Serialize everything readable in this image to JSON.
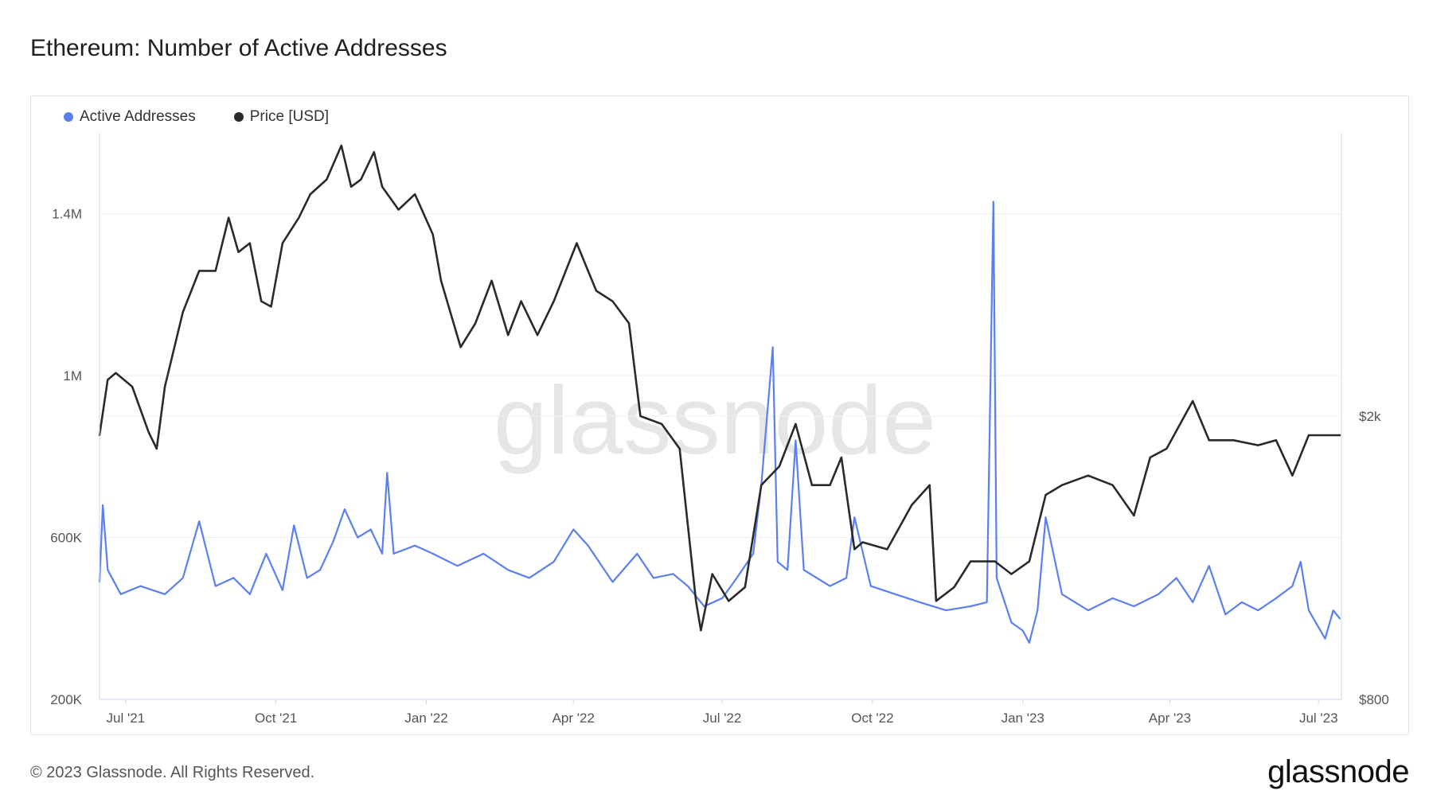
{
  "title": "Ethereum: Number of Active Addresses",
  "watermark": "glassnode",
  "footer": {
    "copyright": "© 2023 Glassnode. All Rights Reserved.",
    "brand": "glassnode"
  },
  "colors": {
    "active_addresses": "#5b7ff0",
    "price": "#2a2a2a",
    "grid": "#eeeeee"
  },
  "chart_data": {
    "type": "line",
    "title": "Ethereum: Number of Active Addresses",
    "legend_position": "top-left",
    "grid": true,
    "x_range": [
      "2021-06-15",
      "2023-07-15"
    ],
    "x_ticks": [
      {
        "date": "2021-07-01",
        "label": "Jul '21"
      },
      {
        "date": "2021-10-01",
        "label": "Oct '21"
      },
      {
        "date": "2022-01-01",
        "label": "Jan '22"
      },
      {
        "date": "2022-04-01",
        "label": "Apr '22"
      },
      {
        "date": "2022-07-01",
        "label": "Jul '22"
      },
      {
        "date": "2022-10-01",
        "label": "Oct '22"
      },
      {
        "date": "2023-01-01",
        "label": "Jan '23"
      },
      {
        "date": "2023-04-01",
        "label": "Apr '23"
      },
      {
        "date": "2023-07-01",
        "label": "Jul '23"
      }
    ],
    "y_left": {
      "label": "",
      "range": [
        200000,
        1600000
      ],
      "ticks": [
        {
          "value": 200000,
          "label": "200K"
        },
        {
          "value": 600000,
          "label": "600K"
        },
        {
          "value": 1000000,
          "label": "1M"
        },
        {
          "value": 1400000,
          "label": "1.4M"
        }
      ]
    },
    "y_right": {
      "label": "",
      "scale": "log",
      "range": [
        800,
        5000
      ],
      "ticks": [
        {
          "value": 800,
          "label": "$800"
        },
        {
          "value": 2000,
          "label": "$2k"
        }
      ]
    },
    "series": [
      {
        "name": "Active Addresses",
        "axis": "left",
        "points": [
          [
            "2021-06-15",
            490000
          ],
          [
            "2021-06-17",
            680000
          ],
          [
            "2021-06-20",
            520000
          ],
          [
            "2021-06-28",
            460000
          ],
          [
            "2021-07-10",
            480000
          ],
          [
            "2021-07-25",
            460000
          ],
          [
            "2021-08-05",
            500000
          ],
          [
            "2021-08-15",
            640000
          ],
          [
            "2021-08-25",
            480000
          ],
          [
            "2021-09-05",
            500000
          ],
          [
            "2021-09-15",
            460000
          ],
          [
            "2021-09-25",
            560000
          ],
          [
            "2021-10-05",
            470000
          ],
          [
            "2021-10-12",
            630000
          ],
          [
            "2021-10-20",
            500000
          ],
          [
            "2021-10-28",
            520000
          ],
          [
            "2021-11-05",
            590000
          ],
          [
            "2021-11-12",
            670000
          ],
          [
            "2021-11-20",
            600000
          ],
          [
            "2021-11-28",
            620000
          ],
          [
            "2021-12-05",
            560000
          ],
          [
            "2021-12-08",
            760000
          ],
          [
            "2021-12-12",
            560000
          ],
          [
            "2021-12-25",
            580000
          ],
          [
            "2022-01-05",
            560000
          ],
          [
            "2022-01-20",
            530000
          ],
          [
            "2022-02-05",
            560000
          ],
          [
            "2022-02-20",
            520000
          ],
          [
            "2022-03-05",
            500000
          ],
          [
            "2022-03-20",
            540000
          ],
          [
            "2022-04-01",
            620000
          ],
          [
            "2022-04-10",
            580000
          ],
          [
            "2022-04-25",
            490000
          ],
          [
            "2022-05-10",
            560000
          ],
          [
            "2022-05-20",
            500000
          ],
          [
            "2022-06-01",
            510000
          ],
          [
            "2022-06-10",
            480000
          ],
          [
            "2022-06-20",
            430000
          ],
          [
            "2022-07-01",
            450000
          ],
          [
            "2022-07-10",
            500000
          ],
          [
            "2022-07-20",
            560000
          ],
          [
            "2022-07-25",
            730000
          ],
          [
            "2022-08-01",
            1070000
          ],
          [
            "2022-08-04",
            540000
          ],
          [
            "2022-08-10",
            520000
          ],
          [
            "2022-08-15",
            840000
          ],
          [
            "2022-08-20",
            520000
          ],
          [
            "2022-09-05",
            480000
          ],
          [
            "2022-09-15",
            500000
          ],
          [
            "2022-09-20",
            650000
          ],
          [
            "2022-09-30",
            480000
          ],
          [
            "2022-10-15",
            460000
          ],
          [
            "2022-10-30",
            440000
          ],
          [
            "2022-11-15",
            420000
          ],
          [
            "2022-11-30",
            430000
          ],
          [
            "2022-12-10",
            440000
          ],
          [
            "2022-12-14",
            1430000
          ],
          [
            "2022-12-16",
            500000
          ],
          [
            "2022-12-25",
            390000
          ],
          [
            "2023-01-01",
            370000
          ],
          [
            "2023-01-05",
            340000
          ],
          [
            "2023-01-10",
            420000
          ],
          [
            "2023-01-15",
            650000
          ],
          [
            "2023-01-25",
            460000
          ],
          [
            "2023-02-10",
            420000
          ],
          [
            "2023-02-25",
            450000
          ],
          [
            "2023-03-10",
            430000
          ],
          [
            "2023-03-25",
            460000
          ],
          [
            "2023-04-05",
            500000
          ],
          [
            "2023-04-15",
            440000
          ],
          [
            "2023-04-25",
            530000
          ],
          [
            "2023-05-05",
            410000
          ],
          [
            "2023-05-15",
            440000
          ],
          [
            "2023-05-25",
            420000
          ],
          [
            "2023-06-05",
            450000
          ],
          [
            "2023-06-15",
            480000
          ],
          [
            "2023-06-20",
            540000
          ],
          [
            "2023-06-25",
            420000
          ],
          [
            "2023-07-05",
            350000
          ],
          [
            "2023-07-10",
            420000
          ],
          [
            "2023-07-14",
            400000
          ]
        ]
      },
      {
        "name": "Price [USD]",
        "axis": "right",
        "points": [
          [
            "2021-06-15",
            1880
          ],
          [
            "2021-06-20",
            2250
          ],
          [
            "2021-06-25",
            2300
          ],
          [
            "2021-07-05",
            2200
          ],
          [
            "2021-07-15",
            1900
          ],
          [
            "2021-07-20",
            1800
          ],
          [
            "2021-07-25",
            2200
          ],
          [
            "2021-08-05",
            2800
          ],
          [
            "2021-08-15",
            3200
          ],
          [
            "2021-08-25",
            3200
          ],
          [
            "2021-09-02",
            3800
          ],
          [
            "2021-09-08",
            3400
          ],
          [
            "2021-09-15",
            3500
          ],
          [
            "2021-09-22",
            2900
          ],
          [
            "2021-09-28",
            2850
          ],
          [
            "2021-10-05",
            3500
          ],
          [
            "2021-10-15",
            3800
          ],
          [
            "2021-10-22",
            4100
          ],
          [
            "2021-11-01",
            4300
          ],
          [
            "2021-11-10",
            4800
          ],
          [
            "2021-11-16",
            4200
          ],
          [
            "2021-11-22",
            4300
          ],
          [
            "2021-11-30",
            4700
          ],
          [
            "2021-12-05",
            4200
          ],
          [
            "2021-12-15",
            3900
          ],
          [
            "2021-12-25",
            4100
          ],
          [
            "2022-01-05",
            3600
          ],
          [
            "2022-01-10",
            3100
          ],
          [
            "2022-01-22",
            2500
          ],
          [
            "2022-01-31",
            2700
          ],
          [
            "2022-02-10",
            3100
          ],
          [
            "2022-02-20",
            2600
          ],
          [
            "2022-02-28",
            2900
          ],
          [
            "2022-03-10",
            2600
          ],
          [
            "2022-03-20",
            2900
          ],
          [
            "2022-04-03",
            3500
          ],
          [
            "2022-04-15",
            3000
          ],
          [
            "2022-04-25",
            2900
          ],
          [
            "2022-05-05",
            2700
          ],
          [
            "2022-05-12",
            2000
          ],
          [
            "2022-05-25",
            1950
          ],
          [
            "2022-06-05",
            1800
          ],
          [
            "2022-06-15",
            1100
          ],
          [
            "2022-06-18",
            1000
          ],
          [
            "2022-06-25",
            1200
          ],
          [
            "2022-07-05",
            1100
          ],
          [
            "2022-07-15",
            1150
          ],
          [
            "2022-07-25",
            1600
          ],
          [
            "2022-08-05",
            1700
          ],
          [
            "2022-08-15",
            1950
          ],
          [
            "2022-08-25",
            1600
          ],
          [
            "2022-09-05",
            1600
          ],
          [
            "2022-09-12",
            1750
          ],
          [
            "2022-09-20",
            1300
          ],
          [
            "2022-09-25",
            1330
          ],
          [
            "2022-10-10",
            1300
          ],
          [
            "2022-10-25",
            1500
          ],
          [
            "2022-11-05",
            1600
          ],
          [
            "2022-11-09",
            1100
          ],
          [
            "2022-11-20",
            1150
          ],
          [
            "2022-11-30",
            1250
          ],
          [
            "2022-12-15",
            1250
          ],
          [
            "2022-12-25",
            1200
          ],
          [
            "2023-01-05",
            1250
          ],
          [
            "2023-01-15",
            1550
          ],
          [
            "2023-01-25",
            1600
          ],
          [
            "2023-02-10",
            1650
          ],
          [
            "2023-02-25",
            1600
          ],
          [
            "2023-03-10",
            1450
          ],
          [
            "2023-03-20",
            1750
          ],
          [
            "2023-03-30",
            1800
          ],
          [
            "2023-04-15",
            2100
          ],
          [
            "2023-04-25",
            1850
          ],
          [
            "2023-05-10",
            1850
          ],
          [
            "2023-05-25",
            1820
          ],
          [
            "2023-06-05",
            1850
          ],
          [
            "2023-06-15",
            1650
          ],
          [
            "2023-06-25",
            1880
          ],
          [
            "2023-07-05",
            1880
          ],
          [
            "2023-07-14",
            1880
          ]
        ]
      }
    ]
  }
}
